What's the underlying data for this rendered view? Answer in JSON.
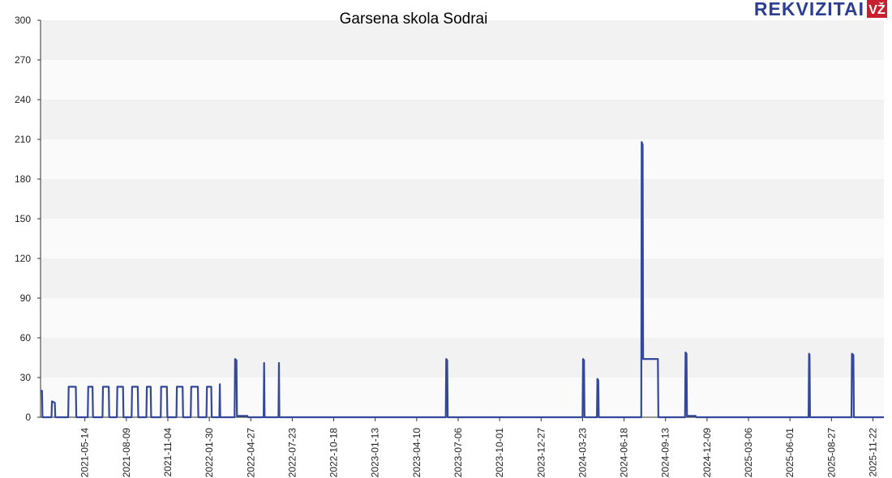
{
  "logo": {
    "text": "REKVIZITAI",
    "badge": "VŽ",
    "text_color": "#2c3e8f",
    "badge_color": "#c8202f"
  },
  "chart_data": {
    "type": "line",
    "title": "Garsena skola Sodrai",
    "xlabel": "",
    "ylabel": "",
    "ylim": [
      0,
      300
    ],
    "yticks": [
      0,
      30,
      60,
      90,
      120,
      150,
      180,
      210,
      240,
      270,
      300
    ],
    "xlim": [
      "2021-02-10",
      "2025-12-15"
    ],
    "xticks": [
      "2021-05-14",
      "2021-08-09",
      "2021-11-04",
      "2022-01-30",
      "2022-04-27",
      "2022-07-23",
      "2022-10-18",
      "2023-01-13",
      "2023-04-10",
      "2023-07-06",
      "2023-10-01",
      "2023-12-27",
      "2024-03-23",
      "2024-06-18",
      "2024-09-13",
      "2024-12-09",
      "2025-03-06",
      "2025-06-01",
      "2025-08-27",
      "2025-11-22"
    ],
    "grid": true,
    "line_color": "#33489a",
    "band_colors": [
      "#f2f2f2",
      "#fafafa"
    ],
    "series": [
      {
        "name": "",
        "points": [
          [
            "2021-02-10",
            20
          ],
          [
            "2021-02-13",
            20
          ],
          [
            "2021-02-14",
            0
          ],
          [
            "2021-03-05",
            0
          ],
          [
            "2021-03-06",
            12
          ],
          [
            "2021-03-12",
            11
          ],
          [
            "2021-03-13",
            0
          ],
          [
            "2021-04-09",
            0
          ],
          [
            "2021-04-10",
            23
          ],
          [
            "2021-04-25",
            23
          ],
          [
            "2021-04-26",
            0
          ],
          [
            "2021-05-20",
            0
          ],
          [
            "2021-05-21",
            23
          ],
          [
            "2021-05-30",
            23
          ],
          [
            "2021-05-31",
            0
          ],
          [
            "2021-06-20",
            0
          ],
          [
            "2021-06-21",
            23
          ],
          [
            "2021-07-03",
            23
          ],
          [
            "2021-07-04",
            0
          ],
          [
            "2021-07-20",
            0
          ],
          [
            "2021-07-21",
            23
          ],
          [
            "2021-08-02",
            23
          ],
          [
            "2021-08-03",
            0
          ],
          [
            "2021-08-20",
            0
          ],
          [
            "2021-08-21",
            23
          ],
          [
            "2021-09-02",
            23
          ],
          [
            "2021-09-03",
            0
          ],
          [
            "2021-09-20",
            0
          ],
          [
            "2021-09-21",
            23
          ],
          [
            "2021-09-29",
            23
          ],
          [
            "2021-09-30",
            0
          ],
          [
            "2021-10-20",
            0
          ],
          [
            "2021-10-21",
            23
          ],
          [
            "2021-11-02",
            23
          ],
          [
            "2021-11-03",
            0
          ],
          [
            "2021-11-22",
            0
          ],
          [
            "2021-11-23",
            23
          ],
          [
            "2021-12-05",
            23
          ],
          [
            "2021-12-06",
            0
          ],
          [
            "2021-12-22",
            0
          ],
          [
            "2021-12-23",
            23
          ],
          [
            "2022-01-06",
            23
          ],
          [
            "2022-01-07",
            0
          ],
          [
            "2022-01-24",
            0
          ],
          [
            "2022-01-25",
            23
          ],
          [
            "2022-02-03",
            23
          ],
          [
            "2022-02-04",
            0
          ],
          [
            "2022-02-20",
            0
          ],
          [
            "2022-02-21",
            25
          ],
          [
            "2022-02-22",
            0
          ],
          [
            "2022-03-24",
            0
          ],
          [
            "2022-03-25",
            44
          ],
          [
            "2022-03-28",
            43
          ],
          [
            "2022-03-29",
            1
          ],
          [
            "2022-04-20",
            1
          ],
          [
            "2022-04-21",
            0
          ],
          [
            "2022-05-24",
            0
          ],
          [
            "2022-05-25",
            41
          ],
          [
            "2022-05-26",
            0
          ],
          [
            "2022-06-24",
            0
          ],
          [
            "2022-06-25",
            41
          ],
          [
            "2022-06-26",
            0
          ],
          [
            "2023-06-10",
            0
          ],
          [
            "2023-06-11",
            44
          ],
          [
            "2023-06-13",
            43
          ],
          [
            "2023-06-14",
            0
          ],
          [
            "2024-03-23",
            0
          ],
          [
            "2024-03-24",
            44
          ],
          [
            "2024-03-26",
            43
          ],
          [
            "2024-03-27",
            0
          ],
          [
            "2024-04-22",
            0
          ],
          [
            "2024-04-23",
            29
          ],
          [
            "2024-04-25",
            28
          ],
          [
            "2024-04-26",
            0
          ],
          [
            "2024-07-24",
            0
          ],
          [
            "2024-07-25",
            208
          ],
          [
            "2024-07-27",
            206
          ],
          [
            "2024-07-28",
            44
          ],
          [
            "2024-08-28",
            44
          ],
          [
            "2024-08-29",
            0
          ],
          [
            "2024-10-24",
            0
          ],
          [
            "2024-10-25",
            49
          ],
          [
            "2024-10-27",
            48
          ],
          [
            "2024-10-28",
            1
          ],
          [
            "2024-11-15",
            1
          ],
          [
            "2024-11-16",
            0
          ],
          [
            "2025-07-10",
            0
          ],
          [
            "2025-07-11",
            48
          ],
          [
            "2025-07-12",
            47
          ],
          [
            "2025-07-13",
            0
          ],
          [
            "2025-10-08",
            0
          ],
          [
            "2025-10-09",
            48
          ],
          [
            "2025-10-12",
            47
          ],
          [
            "2025-10-13",
            0
          ],
          [
            "2025-12-15",
            0
          ]
        ]
      }
    ]
  }
}
